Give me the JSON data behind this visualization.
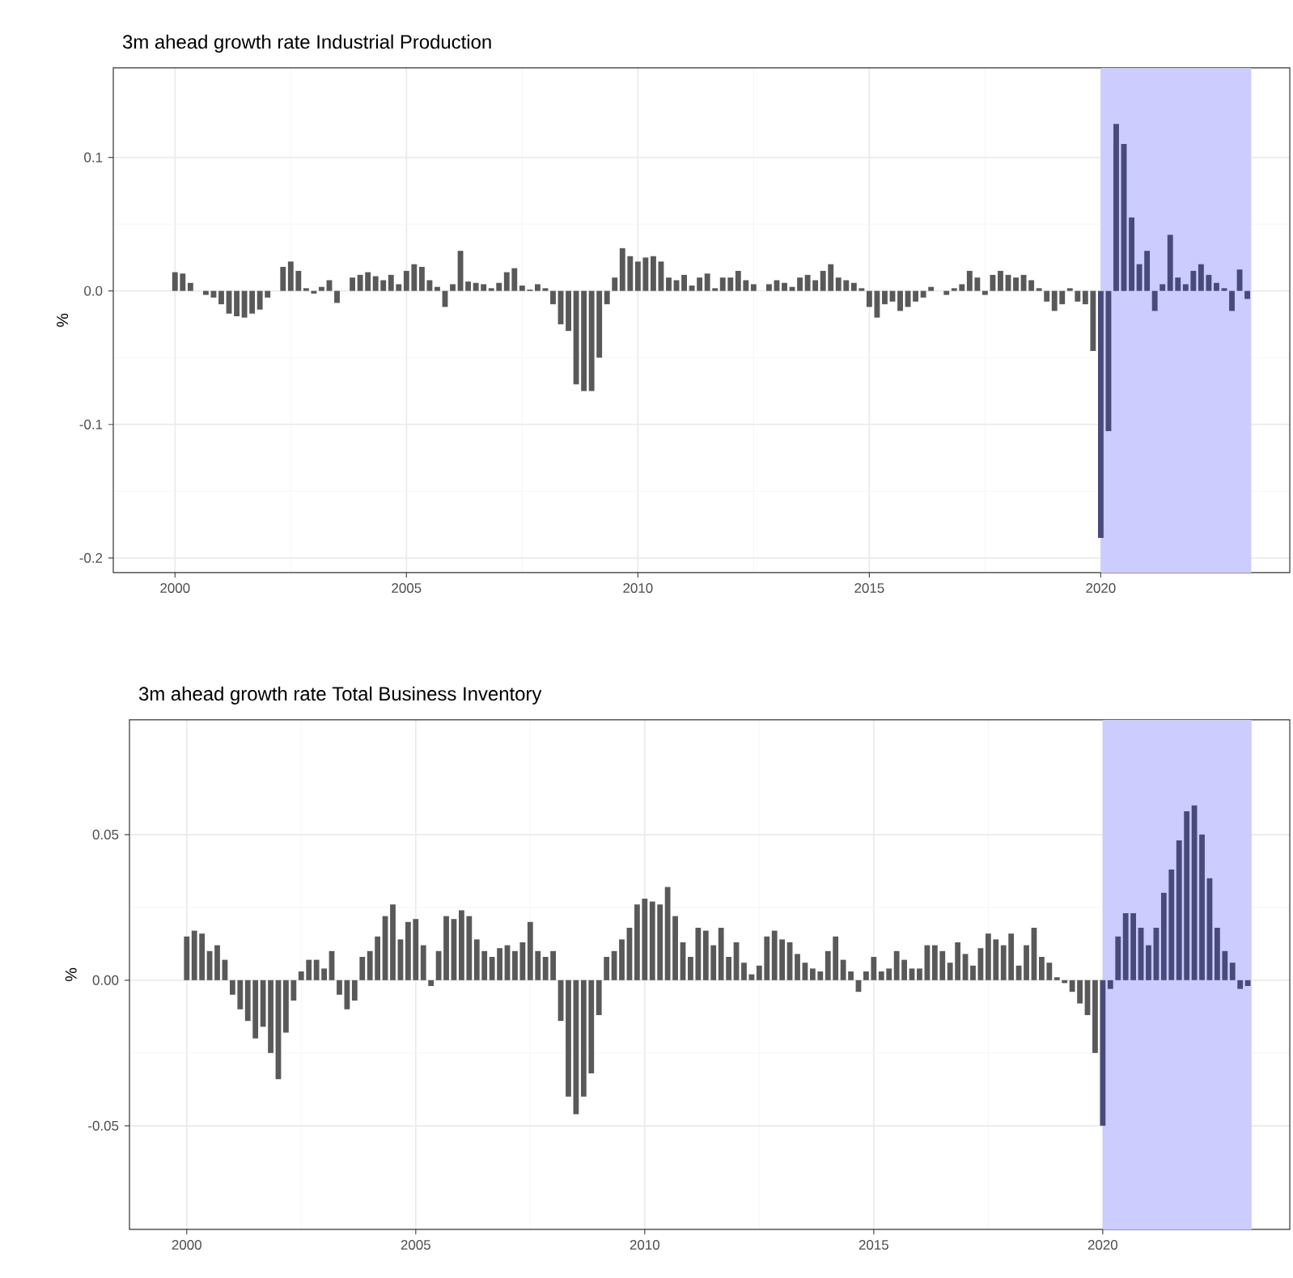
{
  "chart_data": [
    {
      "type": "bar",
      "title": "3m ahead growth rate Industrial Production",
      "ylabel": "%",
      "grid": true,
      "xlim": [
        "1998-09",
        "2024-02"
      ],
      "xticks": [
        "2000",
        "2005",
        "2010",
        "2015",
        "2020"
      ],
      "ylim": [
        -0.211,
        0.167
      ],
      "yticks": [
        -0.2,
        -0.1,
        {
          "value": 0,
          "label": "0.0"
        },
        0.1
      ],
      "bands": [
        {
          "axis": "x",
          "from": "2020-01",
          "to": "2023-04",
          "color": "#ccccff"
        }
      ],
      "series": [
        {
          "color": "#595959",
          "x": [
            "2000-01",
            "2000-03",
            "2000-05",
            "2000-07",
            "2000-09",
            "2000-11",
            "2001-01",
            "2001-03",
            "2001-05",
            "2001-07",
            "2001-09",
            "2001-11",
            "2002-01",
            "2002-03",
            "2002-05",
            "2002-07",
            "2002-09",
            "2002-11",
            "2003-01",
            "2003-03",
            "2003-05",
            "2003-07",
            "2003-09",
            "2003-11",
            "2004-01",
            "2004-03",
            "2004-05",
            "2004-07",
            "2004-09",
            "2004-11",
            "2005-01",
            "2005-03",
            "2005-05",
            "2005-07",
            "2005-09",
            "2005-11",
            "2006-01",
            "2006-03",
            "2006-05",
            "2006-07",
            "2006-09",
            "2006-11",
            "2007-01",
            "2007-03",
            "2007-05",
            "2007-07",
            "2007-09",
            "2007-11",
            "2008-01",
            "2008-03",
            "2008-05",
            "2008-07",
            "2008-09",
            "2008-11",
            "2009-01",
            "2009-03",
            "2009-05",
            "2009-07",
            "2009-09",
            "2009-11",
            "2010-01",
            "2010-03",
            "2010-05",
            "2010-07",
            "2010-09",
            "2010-11",
            "2011-01",
            "2011-03",
            "2011-05",
            "2011-07",
            "2011-09",
            "2011-11",
            "2012-01",
            "2012-03",
            "2012-05",
            "2012-07",
            "2012-09",
            "2012-11",
            "2013-01",
            "2013-03",
            "2013-05",
            "2013-07",
            "2013-09",
            "2013-11",
            "2014-01",
            "2014-03",
            "2014-05",
            "2014-07",
            "2014-09",
            "2014-11",
            "2015-01",
            "2015-03",
            "2015-05",
            "2015-07",
            "2015-09",
            "2015-11",
            "2016-01",
            "2016-03",
            "2016-05",
            "2016-07",
            "2016-09",
            "2016-11",
            "2017-01",
            "2017-03",
            "2017-05",
            "2017-07",
            "2017-09",
            "2017-11",
            "2018-01",
            "2018-03",
            "2018-05",
            "2018-07",
            "2018-09",
            "2018-11",
            "2019-01",
            "2019-03",
            "2019-05",
            "2019-07",
            "2019-09",
            "2019-11"
          ],
          "values": [
            0.014,
            0.013,
            0.006,
            0.0,
            -0.003,
            -0.005,
            -0.01,
            -0.017,
            -0.019,
            -0.02,
            -0.017,
            -0.014,
            -0.005,
            0.0,
            0.018,
            0.022,
            0.015,
            0.002,
            -0.002,
            0.003,
            0.008,
            -0.009,
            0.0,
            0.01,
            0.012,
            0.014,
            0.011,
            0.008,
            0.012,
            0.005,
            0.015,
            0.02,
            0.018,
            0.008,
            0.003,
            -0.012,
            0.005,
            0.03,
            0.007,
            0.006,
            0.005,
            0.002,
            0.006,
            0.014,
            0.017,
            0.004,
            0.001,
            0.005,
            0.002,
            -0.01,
            -0.025,
            -0.03,
            -0.07,
            -0.075,
            -0.075,
            -0.05,
            -0.01,
            0.01,
            0.032,
            0.026,
            0.022,
            0.025,
            0.026,
            0.022,
            0.01,
            0.008,
            0.012,
            0.004,
            0.01,
            0.013,
            0.002,
            0.01,
            0.01,
            0.015,
            0.008,
            0.005,
            0.0,
            0.005,
            0.008,
            0.006,
            0.003,
            0.01,
            0.012,
            0.008,
            0.015,
            0.02,
            0.01,
            0.008,
            0.006,
            0.002,
            -0.012,
            -0.02,
            -0.01,
            -0.008,
            -0.015,
            -0.012,
            -0.008,
            -0.005,
            0.003,
            0.0,
            -0.003,
            0.002,
            0.005,
            0.015,
            0.01,
            -0.003,
            0.012,
            0.015,
            0.012,
            0.01,
            0.012,
            0.008,
            0.002,
            -0.008,
            -0.015,
            -0.01,
            0.002,
            -0.008,
            -0.01,
            -0.045
          ]
        },
        {
          "color": "#474a7a",
          "x": [
            "2020-01",
            "2020-03",
            "2020-05",
            "2020-07",
            "2020-09",
            "2020-11",
            "2021-01",
            "2021-03",
            "2021-05",
            "2021-07",
            "2021-09",
            "2021-11",
            "2022-01",
            "2022-03",
            "2022-05",
            "2022-07",
            "2022-09",
            "2022-11",
            "2023-01",
            "2023-03"
          ],
          "values": [
            -0.185,
            -0.105,
            0.125,
            0.11,
            0.055,
            0.02,
            0.03,
            -0.015,
            0.005,
            0.042,
            0.01,
            0.005,
            0.015,
            0.02,
            0.012,
            0.006,
            0.002,
            -0.015,
            0.016,
            -0.006
          ]
        }
      ]
    },
    {
      "type": "bar",
      "title": "3m ahead growth rate Total Business Inventory",
      "ylabel": "%",
      "grid": true,
      "xlim": [
        "1998-10",
        "2024-02"
      ],
      "xticks": [
        "2000",
        "2005",
        "2010",
        "2015",
        "2020"
      ],
      "ylim": [
        -0.0856,
        0.0894
      ],
      "yticks": [
        -0.05,
        {
          "value": 0,
          "label": "0.00"
        },
        0.05
      ],
      "bands": [
        {
          "axis": "x",
          "from": "2020-01",
          "to": "2023-04",
          "color": "#ccccff"
        }
      ],
      "series": [
        {
          "color": "#595959",
          "x": [
            "2000-01",
            "2000-03",
            "2000-05",
            "2000-07",
            "2000-09",
            "2000-11",
            "2001-01",
            "2001-03",
            "2001-05",
            "2001-07",
            "2001-09",
            "2001-11",
            "2002-01",
            "2002-03",
            "2002-05",
            "2002-07",
            "2002-09",
            "2002-11",
            "2003-01",
            "2003-03",
            "2003-05",
            "2003-07",
            "2003-09",
            "2003-11",
            "2004-01",
            "2004-03",
            "2004-05",
            "2004-07",
            "2004-09",
            "2004-11",
            "2005-01",
            "2005-03",
            "2005-05",
            "2005-07",
            "2005-09",
            "2005-11",
            "2006-01",
            "2006-03",
            "2006-05",
            "2006-07",
            "2006-09",
            "2006-11",
            "2007-01",
            "2007-03",
            "2007-05",
            "2007-07",
            "2007-09",
            "2007-11",
            "2008-01",
            "2008-03",
            "2008-05",
            "2008-07",
            "2008-09",
            "2008-11",
            "2009-01",
            "2009-03",
            "2009-05",
            "2009-07",
            "2009-09",
            "2009-11",
            "2010-01",
            "2010-03",
            "2010-05",
            "2010-07",
            "2010-09",
            "2010-11",
            "2011-01",
            "2011-03",
            "2011-05",
            "2011-07",
            "2011-09",
            "2011-11",
            "2012-01",
            "2012-03",
            "2012-05",
            "2012-07",
            "2012-09",
            "2012-11",
            "2013-01",
            "2013-03",
            "2013-05",
            "2013-07",
            "2013-09",
            "2013-11",
            "2014-01",
            "2014-03",
            "2014-05",
            "2014-07",
            "2014-09",
            "2014-11",
            "2015-01",
            "2015-03",
            "2015-05",
            "2015-07",
            "2015-09",
            "2015-11",
            "2016-01",
            "2016-03",
            "2016-05",
            "2016-07",
            "2016-09",
            "2016-11",
            "2017-01",
            "2017-03",
            "2017-05",
            "2017-07",
            "2017-09",
            "2017-11",
            "2018-01",
            "2018-03",
            "2018-05",
            "2018-07",
            "2018-09",
            "2018-11",
            "2019-01",
            "2019-03",
            "2019-05",
            "2019-07",
            "2019-09",
            "2019-11"
          ],
          "values": [
            0.015,
            0.017,
            0.016,
            0.01,
            0.012,
            0.007,
            -0.005,
            -0.01,
            -0.014,
            -0.02,
            -0.016,
            -0.025,
            -0.034,
            -0.018,
            -0.007,
            0.003,
            0.007,
            0.007,
            0.004,
            0.01,
            -0.005,
            -0.01,
            -0.007,
            0.008,
            0.01,
            0.015,
            0.022,
            0.026,
            0.014,
            0.02,
            0.021,
            0.012,
            -0.002,
            0.01,
            0.022,
            0.021,
            0.024,
            0.022,
            0.014,
            0.01,
            0.008,
            0.011,
            0.012,
            0.01,
            0.013,
            0.02,
            0.01,
            0.008,
            0.01,
            -0.014,
            -0.04,
            -0.046,
            -0.04,
            -0.032,
            -0.012,
            0.008,
            0.01,
            0.014,
            0.018,
            0.026,
            0.028,
            0.027,
            0.026,
            0.032,
            0.022,
            0.013,
            0.008,
            0.018,
            0.017,
            0.012,
            0.018,
            0.008,
            0.013,
            0.006,
            0.002,
            0.005,
            0.015,
            0.017,
            0.014,
            0.013,
            0.009,
            0.006,
            0.004,
            0.003,
            0.01,
            0.015,
            0.007,
            0.003,
            -0.004,
            0.003,
            0.008,
            0.003,
            0.004,
            0.01,
            0.007,
            0.004,
            0.004,
            0.012,
            0.012,
            0.01,
            0.006,
            0.013,
            0.009,
            0.005,
            0.011,
            0.016,
            0.014,
            0.012,
            0.016,
            0.005,
            0.012,
            0.018,
            0.008,
            0.006,
            0.001,
            -0.001,
            -0.004,
            -0.008,
            -0.012,
            -0.025
          ]
        },
        {
          "color": "#474a7a",
          "x": [
            "2020-01",
            "2020-03",
            "2020-05",
            "2020-07",
            "2020-09",
            "2020-11",
            "2021-01",
            "2021-03",
            "2021-05",
            "2021-07",
            "2021-09",
            "2021-11",
            "2022-01",
            "2022-03",
            "2022-05",
            "2022-07",
            "2022-09",
            "2022-11",
            "2023-01",
            "2023-03"
          ],
          "values": [
            -0.05,
            -0.003,
            0.015,
            0.023,
            0.023,
            0.018,
            0.012,
            0.018,
            0.03,
            0.038,
            0.048,
            0.058,
            0.06,
            0.05,
            0.035,
            0.018,
            0.01,
            0.006,
            -0.003,
            -0.002
          ]
        }
      ]
    }
  ]
}
